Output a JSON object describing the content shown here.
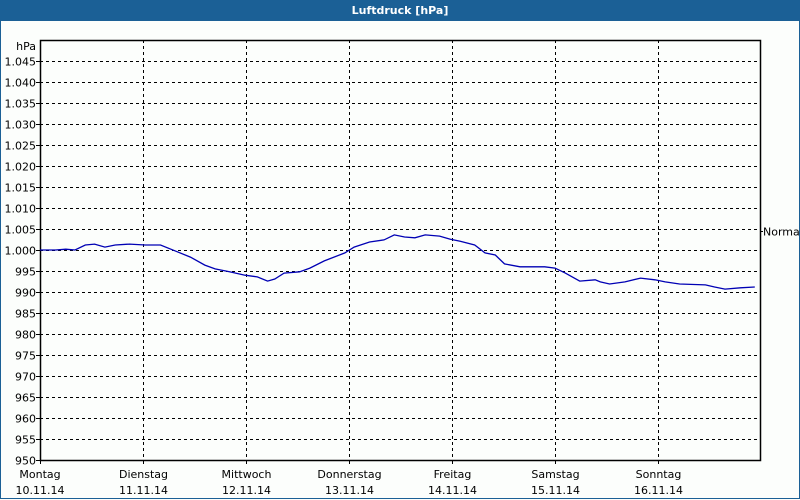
{
  "window": {
    "title": "Luftdruck [hPa]",
    "accent_color": "#1b6096"
  },
  "chart_data": {
    "type": "line",
    "title": "Luftdruck [hPa]",
    "xlabel": "",
    "ylabel": "hPa",
    "ylim": [
      950,
      1050
    ],
    "y_ticks": [
      "1.045",
      "1.040",
      "1.035",
      "1.030",
      "1.025",
      "1.020",
      "1.015",
      "1.010",
      "1.005",
      "1.000",
      "995",
      "990",
      "985",
      "980",
      "975",
      "970",
      "965",
      "960",
      "955",
      "950"
    ],
    "y_tick_values": [
      1045,
      1040,
      1035,
      1030,
      1025,
      1020,
      1015,
      1010,
      1005,
      1000,
      995,
      990,
      985,
      980,
      975,
      970,
      965,
      960,
      955,
      950
    ],
    "x_ticks": [
      {
        "day": "Montag",
        "date": "10.11.14"
      },
      {
        "day": "Dienstag",
        "date": "11.11.14"
      },
      {
        "day": "Mittwoch",
        "date": "12.11.14"
      },
      {
        "day": "Donnerstag",
        "date": "13.11.14"
      },
      {
        "day": "Freitag",
        "date": "14.11.14"
      },
      {
        "day": "Samstag",
        "date": "15.11.14"
      },
      {
        "day": "Sonntag",
        "date": "16.11.14"
      }
    ],
    "grid": true,
    "reference_line": {
      "label": "Normal",
      "value": 1005
    },
    "series": [
      {
        "name": "Luftdruck",
        "color": "#0000b4",
        "x_days": [
          0.0,
          0.15,
          0.25,
          0.34,
          0.44,
          0.53,
          0.63,
          0.73,
          0.87,
          1.02,
          1.17,
          1.31,
          1.46,
          1.6,
          1.7,
          1.84,
          1.99,
          2.11,
          2.21,
          2.28,
          2.37,
          2.52,
          2.62,
          2.76,
          2.96,
          3.05,
          3.2,
          3.34,
          3.44,
          3.54,
          3.64,
          3.74,
          3.88,
          3.98,
          4.08,
          4.22,
          4.32,
          4.42,
          4.51,
          4.66,
          4.9,
          5.0,
          5.1,
          5.24,
          5.39,
          5.44,
          5.53,
          5.68,
          5.83,
          5.97,
          6.07,
          6.21,
          6.46,
          6.55,
          6.65,
          6.8,
          6.94
        ],
        "values": [
          1000.0,
          1000.0,
          1000.2,
          1000.0,
          1001.2,
          1001.4,
          1000.7,
          1001.2,
          1001.4,
          1001.2,
          1001.2,
          999.8,
          998.3,
          996.4,
          995.5,
          994.8,
          994.0,
          993.6,
          992.6,
          993.1,
          994.5,
          994.8,
          995.7,
          997.4,
          999.3,
          1000.7,
          1001.9,
          1002.4,
          1003.6,
          1003.1,
          1002.9,
          1003.6,
          1003.3,
          1002.6,
          1002.1,
          1001.2,
          999.3,
          998.8,
          996.7,
          996.0,
          996.0,
          995.7,
          994.5,
          992.6,
          992.9,
          992.4,
          991.9,
          992.4,
          993.3,
          992.9,
          992.4,
          991.9,
          991.7,
          991.2,
          990.7,
          991.0,
          991.2
        ]
      }
    ]
  }
}
